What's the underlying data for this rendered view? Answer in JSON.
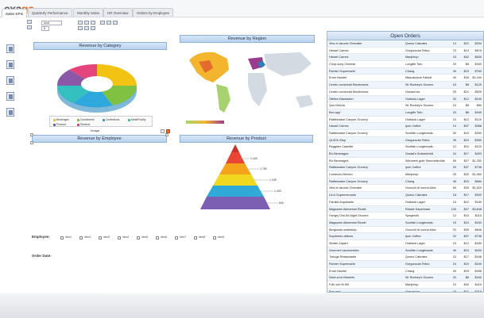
{
  "app": {
    "logo_main": "exa",
    "logo_accent": "go"
  },
  "tabs": [
    {
      "label": "Sales KPIs"
    },
    {
      "label": "Quarterly Performance"
    },
    {
      "label": "Monthly Sales"
    },
    {
      "label": "HR Overview"
    },
    {
      "label": "Orders by Employee"
    }
  ],
  "toolbar": {
    "font": "Arial",
    "size": "8"
  },
  "panels": {
    "category": {
      "title": "Revenue by Category"
    },
    "region": {
      "title": "Revenue by Region"
    },
    "employee": {
      "title": "Revenue by Employee",
      "image_label": "Image"
    },
    "product": {
      "title": "Revenue by Product"
    }
  },
  "category_legend": [
    {
      "label": "Beverages",
      "color": "#f2c313"
    },
    {
      "label": "Condiments",
      "color": "#7fc241"
    },
    {
      "label": "Confections",
      "color": "#2fa8dd"
    },
    {
      "label": "Meat/Poultry",
      "color": "#35c0c0"
    },
    {
      "label": "Produce",
      "color": "#8b57a7"
    },
    {
      "label": "Seafood",
      "color": "#e4457d"
    }
  ],
  "pyramid_labels": [
    "1,449",
    "1,750",
    "1,325",
    "1,400",
    "840"
  ],
  "filters": {
    "employee_label": "Employee:",
    "order_date_label": "Order Date:",
    "options": [
      "Item1",
      "Item2",
      "Item3",
      "Item4",
      "Item5",
      "Item6",
      "Item7",
      "Item8",
      "Item9",
      "Item10"
    ]
  },
  "orders": {
    "title": "Open Orders",
    "rows": [
      [
        "Vins et alcools Chevalier",
        "Queso Cabrales",
        "14",
        "$21",
        "$294"
      ],
      [
        "Hanari Carnes",
        "Gorgonzola Telino",
        "70",
        "$13",
        "$875"
      ],
      [
        "Hanari Carnes",
        "Manjimup",
        "15",
        "$42",
        "$636"
      ],
      [
        "Chop-suey Chinese",
        "Longlife Tofu",
        "20",
        "$8",
        "$160"
      ],
      [
        "Richter Supermarkt",
        "Chang",
        "40",
        "$19",
        "$760"
      ],
      [
        "Ernst Handel",
        "Mascarpone Fabioli",
        "40",
        "$26",
        "$1,040"
      ],
      [
        "Centro comercial Moctezuma",
        "Sir Rodney's Scones",
        "15",
        "$8",
        "$120"
      ],
      [
        "Centro comercial Moctezuma",
        "Gravad lax",
        "25",
        "$21",
        "$525"
      ],
      [
        "Ottilies Käseladen",
        "Outback Lager",
        "20",
        "$12",
        "$240"
      ],
      [
        "Que Delícia",
        "Sir Rodney's Scones",
        "10",
        "$8",
        "$80"
      ],
      [
        "Bon app'",
        "Longlife Tofu",
        "20",
        "$8",
        "$160"
      ],
      [
        "Rattlesnake Canyon Grocery",
        "Outback Lager",
        "10",
        "$12",
        "$120"
      ],
      [
        "Hanari Carnes",
        "Ipoh Coffee",
        "10",
        "$37",
        "$368"
      ],
      [
        "Rattlesnake Canyon Grocery",
        "Scottish Longbreads",
        "30",
        "$10",
        "$300"
      ],
      [
        "QUICK-Stop",
        "Gorgonzola Telino",
        "35",
        "$10",
        "$350"
      ],
      [
        "Reggiani Caseifici",
        "Scottish Longbreads",
        "12",
        "$10",
        "$120"
      ],
      [
        "B's Beverages",
        "Gustaf's Knäckebröd",
        "24",
        "$17",
        "$403"
      ],
      [
        "B's Beverages",
        "Wimmers gute Semmelknödel",
        "50",
        "$27",
        "$1,330"
      ],
      [
        "Rattlesnake Canyon Grocery",
        "Ipoh Coffee",
        "20",
        "$37",
        "$736"
      ],
      [
        "Comércio Mineiro",
        "Manjimup",
        "25",
        "$42",
        "$1,060"
      ],
      [
        "Rattlesnake Canyon Grocery",
        "Chang",
        "45",
        "$15",
        "$684"
      ],
      [
        "Vins et alcools Chevalier",
        "Gnocchi di nonna Alice",
        "50",
        "$30",
        "$1,520"
      ],
      [
        "LILA-Supermercado",
        "Queso Cabrales",
        "18",
        "$17",
        "$302"
      ],
      [
        "Familia Arquibaldo",
        "Outback Lager",
        "15",
        "$12",
        "$180"
      ],
      [
        "Magazzini Alimentari Riuniti",
        "Rössle Sauerkraut",
        "100",
        "$37",
        "$3,648"
      ],
      [
        "Hungry Owl All-Night Grocers",
        "Spegesild",
        "12",
        "$10",
        "$115"
      ],
      [
        "Magazzini Alimentari Riuniti",
        "Scottish Longbreads",
        "15",
        "$10",
        "$150"
      ],
      [
        "Berglunds snabbköp",
        "Gnocchi di nonna Alice",
        "20",
        "$30",
        "$608"
      ],
      [
        "Suprêmes délices",
        "Ipoh Coffee",
        "20",
        "$37",
        "$736"
      ],
      [
        "Wolski Zajazd",
        "Outback Lager",
        "15",
        "$12",
        "$180"
      ],
      [
        "Gourmet Lanchonetes",
        "Scottish Longbreads",
        "40",
        "$10",
        "$400"
      ],
      [
        "Tortuga Restaurante",
        "Queso Cabrales",
        "10",
        "$17",
        "$168"
      ],
      [
        "Richter Supermarkt",
        "Gorgonzola Telino",
        "24",
        "$10",
        "$240"
      ],
      [
        "Ernst Handel",
        "Chang",
        "30",
        "$15",
        "$456"
      ],
      [
        "Save-a-lot Markets",
        "Sir Rodney's Scones",
        "20",
        "$8",
        "$160"
      ],
      [
        "Folk och fä HB",
        "Manjimup",
        "10",
        "$42",
        "$424"
      ],
      [
        "Bon app'",
        "Gravad lax",
        "15",
        "$21",
        "$315"
      ]
    ]
  }
}
